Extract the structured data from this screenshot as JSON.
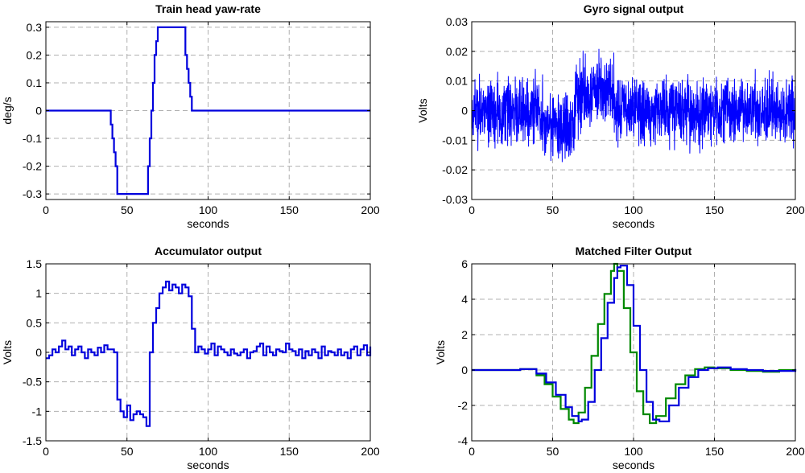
{
  "chart_data": [
    {
      "type": "line",
      "title": "Train head yaw-rate",
      "xlabel": "seconds",
      "ylabel": "deg/s",
      "xlim": [
        0,
        200
      ],
      "ylim": [
        -0.32,
        0.32
      ],
      "xticks": [
        0,
        50,
        100,
        150,
        200
      ],
      "yticks": [
        -0.3,
        -0.2,
        -0.1,
        0,
        0.1,
        0.2,
        0.3
      ],
      "ytick_labels": [
        "-0.3",
        "-0.2",
        "-0.1",
        "0",
        "0.1",
        "0.2",
        "0.3"
      ],
      "grid": true,
      "series": [
        {
          "color": "#0000dd",
          "step": true,
          "x": [
            0,
            39,
            40,
            41,
            42,
            43,
            44,
            62,
            63,
            64,
            65,
            66,
            67,
            68,
            69,
            85,
            86,
            87,
            88,
            89,
            90,
            200
          ],
          "y": [
            0,
            0,
            -0.05,
            -0.1,
            -0.15,
            -0.2,
            -0.3,
            -0.3,
            -0.2,
            -0.1,
            0,
            0.1,
            0.2,
            0.25,
            0.3,
            0.3,
            0.2,
            0.15,
            0.1,
            0.05,
            0,
            0
          ]
        }
      ]
    },
    {
      "type": "line",
      "title": "Gyro signal output",
      "xlabel": "seconds",
      "ylabel": "Volts",
      "xlim": [
        0,
        200
      ],
      "ylim": [
        -0.03,
        0.03
      ],
      "xticks": [
        0,
        50,
        100,
        150,
        200
      ],
      "yticks": [
        -0.03,
        -0.02,
        -0.01,
        0,
        0.01,
        0.02,
        0.03
      ],
      "ytick_labels": [
        "-0.03",
        "-0.02",
        "-0.01",
        "0",
        "0.01",
        "0.02",
        "0.03"
      ],
      "grid": true,
      "series": [
        {
          "color": "#0000ff",
          "noise": true,
          "segments": [
            {
              "x0": 0,
              "x1": 44,
              "center": 0,
              "amplitude": 0.016
            },
            {
              "x0": 44,
              "x1": 64,
              "center": -0.006,
              "amplitude": 0.017
            },
            {
              "x0": 64,
              "x1": 88,
              "center": 0.006,
              "amplitude": 0.018
            },
            {
              "x0": 88,
              "x1": 200,
              "center": 0,
              "amplitude": 0.016
            }
          ]
        }
      ]
    },
    {
      "type": "line",
      "title": "Accumulator output",
      "xlabel": "seconds",
      "ylabel": "Volts",
      "xlim": [
        0,
        200
      ],
      "ylim": [
        -1.5,
        1.5
      ],
      "xticks": [
        0,
        50,
        100,
        150,
        200
      ],
      "yticks": [
        -1.5,
        -1,
        -0.5,
        0,
        0.5,
        1,
        1.5
      ],
      "ytick_labels": [
        "-1.5",
        "-1",
        "-0.5",
        "0",
        "0.5",
        "1",
        "1.5"
      ],
      "grid": true,
      "series": [
        {
          "color": "#0000dd",
          "step": true,
          "x": [
            0,
            2,
            4,
            6,
            8,
            10,
            12,
            14,
            16,
            18,
            20,
            22,
            24,
            26,
            28,
            30,
            32,
            34,
            36,
            38,
            40,
            42,
            44,
            46,
            48,
            50,
            52,
            54,
            56,
            58,
            60,
            62,
            64,
            66,
            68,
            70,
            72,
            74,
            76,
            78,
            80,
            82,
            84,
            86,
            88,
            90,
            92,
            94,
            96,
            98,
            100,
            102,
            104,
            106,
            108,
            110,
            112,
            114,
            116,
            118,
            120,
            122,
            124,
            126,
            128,
            130,
            132,
            134,
            136,
            138,
            140,
            142,
            144,
            146,
            148,
            150,
            152,
            154,
            156,
            158,
            160,
            162,
            164,
            166,
            168,
            170,
            172,
            174,
            176,
            178,
            180,
            182,
            184,
            186,
            188,
            190,
            192,
            194,
            196,
            198,
            200
          ],
          "y": [
            -0.1,
            -0.05,
            0.05,
            0,
            0.1,
            0.2,
            0.05,
            0.1,
            -0.05,
            0.05,
            0.1,
            0,
            -0.1,
            0.05,
            0,
            -0.05,
            0.08,
            0,
            0.12,
            0.05,
            0.05,
            0,
            -0.8,
            -1.0,
            -1.1,
            -0.9,
            -1.15,
            -1.05,
            -1.0,
            -1.05,
            -1.1,
            -1.25,
            0.0,
            0.5,
            0.75,
            1.0,
            1.1,
            1.2,
            1.05,
            1.15,
            1.1,
            1.0,
            1.15,
            1.1,
            0.95,
            0.4,
            0.0,
            0.1,
            0.05,
            -0.02,
            0.05,
            0.15,
            -0.05,
            0.1,
            0.05,
            0,
            -0.05,
            0.05,
            -0.02,
            -0.05,
            0,
            0.05,
            -0.1,
            0,
            0.02,
            0.1,
            0.15,
            -0.05,
            0.1,
            0,
            -0.05,
            0.05,
            0.02,
            0,
            0.15,
            0.05,
            0.02,
            -0.05,
            0.05,
            -0.1,
            0.02,
            -0.05,
            0.05,
            0.0,
            -0.1,
            0.1,
            -0.05,
            0.02,
            0,
            -0.05,
            0.05,
            -0.05,
            0,
            -0.1,
            0.05,
            0.1,
            -0.05,
            0.05,
            0.12,
            -0.05,
            0.1
          ]
        }
      ]
    },
    {
      "type": "line",
      "title": "Matched Filter Output",
      "xlabel": "seconds",
      "ylabel": "Volts",
      "xlim": [
        0,
        200
      ],
      "ylim": [
        -4,
        6
      ],
      "xticks": [
        0,
        50,
        100,
        150,
        200
      ],
      "yticks": [
        -4,
        -2,
        0,
        2,
        4,
        6
      ],
      "ytick_labels": [
        "-4",
        "-2",
        "0",
        "2",
        "4",
        "6"
      ],
      "grid": true,
      "series": [
        {
          "color": "#008800",
          "step": true,
          "x": [
            0,
            20,
            30,
            40,
            45,
            50,
            55,
            60,
            63,
            66,
            70,
            74,
            78,
            82,
            86,
            88,
            90,
            94,
            98,
            102,
            106,
            110,
            114,
            120,
            126,
            132,
            138,
            144,
            150,
            160,
            170,
            180,
            190,
            200
          ],
          "y": [
            0,
            0,
            0.05,
            -0.3,
            -0.8,
            -1.5,
            -2.2,
            -2.8,
            -3.0,
            -2.4,
            -1.0,
            0.8,
            2.6,
            4.3,
            5.6,
            6.0,
            5.6,
            3.5,
            1.0,
            -1.2,
            -2.5,
            -3.0,
            -2.6,
            -1.6,
            -0.8,
            -0.3,
            0.05,
            0.15,
            0.1,
            0.0,
            -0.05,
            -0.1,
            0.0,
            0.05
          ]
        },
        {
          "color": "#0000dd",
          "step": true,
          "x": [
            0,
            20,
            30,
            40,
            46,
            52,
            58,
            62,
            66,
            68,
            72,
            76,
            80,
            84,
            88,
            90,
            92,
            96,
            100,
            104,
            108,
            112,
            116,
            122,
            128,
            134,
            140,
            146,
            152,
            160,
            170,
            180,
            190,
            200
          ],
          "y": [
            0,
            0,
            0.05,
            -0.2,
            -0.7,
            -1.4,
            -2.1,
            -2.6,
            -2.9,
            -2.8,
            -1.8,
            0.0,
            1.8,
            3.8,
            5.2,
            5.8,
            5.9,
            4.8,
            2.5,
            0.0,
            -1.8,
            -2.8,
            -2.9,
            -2.0,
            -1.0,
            -0.4,
            0.0,
            0.1,
            0.15,
            0.05,
            0.0,
            -0.05,
            -0.05,
            0.05
          ]
        }
      ]
    }
  ]
}
